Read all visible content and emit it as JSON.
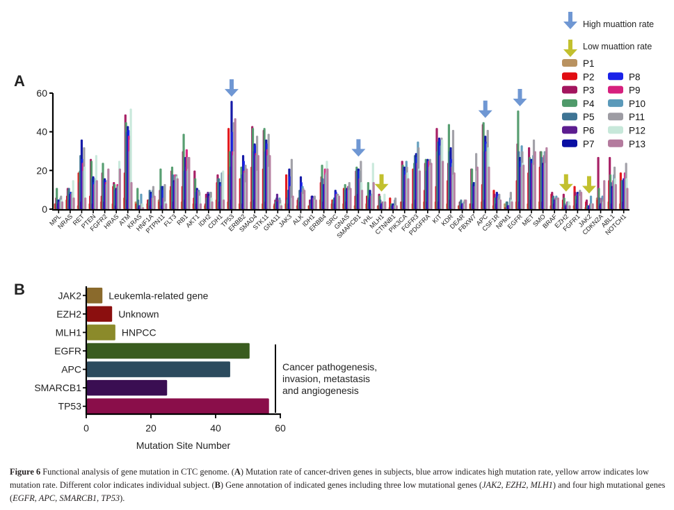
{
  "panel_labels": {
    "a": "A",
    "b": "B"
  },
  "legend": {
    "high_arrow_label": "High muattion rate",
    "low_arrow_label": "Low muattion rate",
    "high_arrow_color": "#6f97d3",
    "low_arrow_color": "#c2c02e"
  },
  "chart_data": [
    {
      "type": "bar",
      "title": "",
      "xlabel": "",
      "ylabel": "",
      "ylim": [
        0,
        60
      ],
      "yticks": [
        0,
        20,
        40,
        60
      ],
      "categories": [
        "MPL",
        "NRAS",
        "RET",
        "PTEN",
        "FGFR2",
        "HRAS",
        "ATM",
        "KRAS",
        "HNF1A",
        "PTPN11",
        "FLT3",
        "RB1",
        "AKT1",
        "IDH2",
        "CDH1",
        "TP53",
        "ERBB2",
        "SMAD4",
        "STK11",
        "GNA11",
        "JAK3",
        "ALK",
        "IDH1",
        "ERBB4",
        "SRC",
        "GNAS",
        "SMARCB1",
        "VHL",
        "MLH1",
        "CTNNB1",
        "PIK3CA",
        "FGFR3",
        "PDGFRA",
        "KIT",
        "KDR",
        "DEAR",
        "FBXW7",
        "APC",
        "CSF1R",
        "NPM1",
        "EGFR",
        "MET",
        "SMO",
        "BRAF",
        "EZH2",
        "FGFR1",
        "JAK2",
        "CDKN2A",
        "ABL1",
        "NOTCH1"
      ],
      "high_mutation_genes": [
        "TP53",
        "SMARCB1",
        "APC",
        "EGFR"
      ],
      "low_mutation_genes": [
        "MLH1",
        "EZH2",
        "JAK2"
      ],
      "series": [
        {
          "name": "P1",
          "color": "#b99260",
          "values": [
            3,
            5,
            2,
            3,
            4,
            3,
            6,
            4,
            3,
            5,
            10,
            4,
            3,
            2,
            5,
            4,
            3,
            4,
            3,
            2,
            3,
            2,
            2,
            5,
            3,
            3,
            2,
            3,
            2,
            1,
            4,
            3,
            4,
            4,
            3,
            2,
            3,
            4,
            2,
            3,
            4,
            3,
            4,
            2,
            1,
            2,
            1,
            6,
            4,
            3
          ]
        },
        {
          "name": "P2",
          "color": "#e10d12",
          "values": [
            3,
            7,
            19,
            7,
            7,
            12,
            19,
            3,
            5,
            4,
            12,
            12,
            6,
            3,
            14,
            42,
            16,
            22,
            21,
            3,
            18,
            5,
            2,
            14,
            5,
            11,
            7,
            7,
            2,
            6,
            4,
            21,
            10,
            12,
            15,
            2,
            3,
            13,
            10,
            1,
            15,
            19,
            22,
            8,
            5,
            12,
            4,
            5,
            15,
            19
          ]
        },
        {
          "name": "P3",
          "color": "#a3155e",
          "values": [
            6,
            11,
            14,
            26,
            19,
            14,
            49,
            2,
            5,
            10,
            20,
            30,
            20,
            8,
            18,
            18,
            10,
            43,
            41,
            5,
            6,
            6,
            5,
            17,
            4,
            10,
            20,
            7,
            8,
            2,
            25,
            20,
            24,
            42,
            24,
            4,
            21,
            44,
            8,
            1,
            34,
            32,
            30,
            9,
            8,
            9,
            5,
            27,
            27,
            15
          ]
        },
        {
          "name": "P4",
          "color": "#4f9a6a",
          "values": [
            11,
            10,
            20,
            25,
            24,
            13,
            45,
            11,
            5,
            21,
            22,
            39,
            16,
            6,
            16,
            30,
            22,
            42,
            42,
            4,
            5,
            6,
            3,
            23,
            5,
            13,
            22,
            14,
            7,
            3,
            23,
            24,
            26,
            30,
            44,
            4,
            21,
            45,
            6,
            4,
            51,
            27,
            30,
            6,
            6,
            7,
            2,
            11,
            18,
            15
          ]
        },
        {
          "name": "P5",
          "color": "#3e7494",
          "values": [
            5,
            11,
            28,
            16,
            15,
            10,
            40,
            5,
            10,
            12,
            18,
            20,
            9,
            5,
            16,
            22,
            18,
            30,
            30,
            6,
            10,
            10,
            5,
            16,
            6,
            10,
            21,
            6,
            5,
            2,
            22,
            28,
            20,
            35,
            30,
            5,
            13,
            30,
            6,
            4,
            30,
            26,
            27,
            7,
            3,
            5,
            2,
            6,
            14,
            15
          ]
        },
        {
          "name": "P6",
          "color": "#5c1d90",
          "values": [
            3,
            5,
            4,
            3,
            4,
            2,
            5,
            1,
            2,
            2,
            4,
            5,
            3,
            9,
            4,
            5,
            3,
            5,
            4,
            8,
            3,
            4,
            7,
            4,
            3,
            4,
            8,
            5,
            2,
            2,
            4,
            5,
            4,
            4,
            5,
            2,
            3,
            5,
            3,
            2,
            4,
            5,
            4,
            3,
            2,
            3,
            1,
            2,
            3,
            4
          ]
        },
        {
          "name": "P7",
          "color": "#0a0fa3",
          "values": [
            5,
            8,
            36,
            17,
            16,
            11,
            43,
            2,
            9,
            12,
            15,
            27,
            11,
            8,
            14,
            56,
            28,
            34,
            36,
            4,
            21,
            17,
            7,
            13,
            10,
            11,
            21,
            10,
            3,
            3,
            22,
            29,
            26,
            37,
            32,
            3,
            14,
            38,
            9,
            2,
            27,
            26,
            24,
            5,
            1,
            9,
            2,
            3,
            12,
            16
          ]
        },
        {
          "name": "P8",
          "color": "#1a22e8",
          "values": [
            4,
            9,
            26,
            14,
            15,
            10,
            41,
            2,
            8,
            10,
            14,
            22,
            10,
            6,
            13,
            40,
            25,
            33,
            34,
            4,
            17,
            14,
            6,
            13,
            9,
            10,
            20,
            8,
            3,
            2,
            20,
            27,
            25,
            36,
            26,
            3,
            12,
            35,
            8,
            2,
            25,
            25,
            23,
            5,
            2,
            8,
            2,
            3,
            11,
            16
          ]
        },
        {
          "name": "P9",
          "color": "#d6207e",
          "values": [
            4,
            8,
            24,
            13,
            14,
            13,
            38,
            2,
            6,
            6,
            18,
            31,
            10,
            7,
            12,
            30,
            20,
            29,
            31,
            5,
            12,
            9,
            6,
            21,
            8,
            12,
            16,
            7,
            4,
            2,
            18,
            24,
            25,
            28,
            22,
            3,
            12,
            30,
            6,
            2,
            22,
            24,
            28,
            6,
            4,
            8,
            3,
            6,
            15,
            19
          ]
        },
        {
          "name": "P10",
          "color": "#5b9aba",
          "values": [
            6,
            9,
            20,
            16,
            13,
            12,
            30,
            8,
            10,
            12,
            17,
            20,
            10,
            9,
            19,
            28,
            19,
            28,
            28,
            6,
            12,
            12,
            6,
            18,
            8,
            12,
            20,
            8,
            4,
            5,
            25,
            35,
            22,
            33,
            24,
            4,
            14,
            34,
            7,
            6,
            33,
            28,
            30,
            7,
            4,
            9,
            7,
            7,
            18,
            16
          ]
        },
        {
          "name": "P11",
          "color": "#9d9ca3",
          "values": [
            7,
            9,
            32,
            14,
            15,
            12,
            36,
            3,
            12,
            13,
            18,
            27,
            9,
            9,
            19,
            45,
            23,
            38,
            39,
            5,
            26,
            11,
            7,
            19,
            8,
            14,
            25,
            8,
            4,
            6,
            22,
            32,
            26,
            37,
            41,
            5,
            29,
            41,
            8,
            9,
            30,
            36,
            30,
            6,
            4,
            10,
            3,
            5,
            22,
            24
          ]
        },
        {
          "name": "P12",
          "color": "#c7e8da",
          "values": [
            5,
            15,
            22,
            28,
            15,
            25,
            52,
            3,
            6,
            4,
            17,
            21,
            7,
            6,
            20,
            30,
            14,
            20,
            22,
            3,
            6,
            8,
            5,
            25,
            7,
            10,
            14,
            24,
            8,
            2,
            19,
            21,
            23,
            36,
            18,
            3,
            20,
            32,
            5,
            5,
            24,
            23,
            24,
            5,
            4,
            7,
            3,
            4,
            16,
            16
          ]
        },
        {
          "name": "P13",
          "color": "#b47b9e",
          "values": [
            4,
            6,
            6,
            15,
            21,
            21,
            14,
            1,
            7,
            3,
            16,
            27,
            3,
            4,
            5,
            47,
            21,
            28,
            28,
            2,
            7,
            10,
            5,
            21,
            7,
            11,
            10,
            14,
            4,
            2,
            16,
            20,
            24,
            25,
            19,
            5,
            22,
            22,
            5,
            4,
            23,
            30,
            32,
            6,
            2,
            9,
            3,
            15,
            13,
            11
          ]
        }
      ]
    },
    {
      "type": "bar",
      "orientation": "horizontal",
      "xlabel": "Mutation Site Number",
      "ylabel": "",
      "xlim": [
        0,
        60
      ],
      "xticks": [
        0,
        20,
        40,
        60
      ],
      "categories": [
        "JAK2",
        "EZH2",
        "MLH1",
        "EGFR",
        "APC",
        "SMARCB1",
        "TP53"
      ],
      "values": [
        5,
        8,
        9,
        50.5,
        44.5,
        25,
        56.5
      ],
      "colors": [
        "#8a6a2c",
        "#8b0f0f",
        "#8b8a2a",
        "#3a5c1f",
        "#2c4b5e",
        "#3a0e52",
        "#8a0e4a"
      ],
      "annotations": [
        {
          "gene": "JAK2",
          "text": "Leukemla-related gene"
        },
        {
          "gene": "EZH2",
          "text": "Unknown"
        },
        {
          "gene": "MLH1",
          "text": "HNPCC"
        }
      ],
      "group_bracket": {
        "genes": [
          "EGFR",
          "APC",
          "SMARCB1",
          "TP53"
        ],
        "lines": [
          "Cancer pathogenesis,",
          "invasion, metastasis",
          "and angiogenesis"
        ]
      }
    }
  ],
  "caption": {
    "label": "Figure 6",
    "text1": " Functional analysis of gene mutation in CTC genome. (",
    "a": "A",
    "text2": ") Mutation rate of cancer-driven genes in subjects, blue arrow indicates high mutation rate, yellow arrow indicates low mutation rate. Different color indicates individual subject. (",
    "b": "B",
    "text3": ") Gene annotation of indicated genes including three low mutational genes (",
    "low_genes": "JAK2, EZH2, MLH1",
    "text4": ") and four high mutational genes (",
    "high_genes": "EGFR, APC, SMARCB1, TP53",
    "text5": ")."
  }
}
